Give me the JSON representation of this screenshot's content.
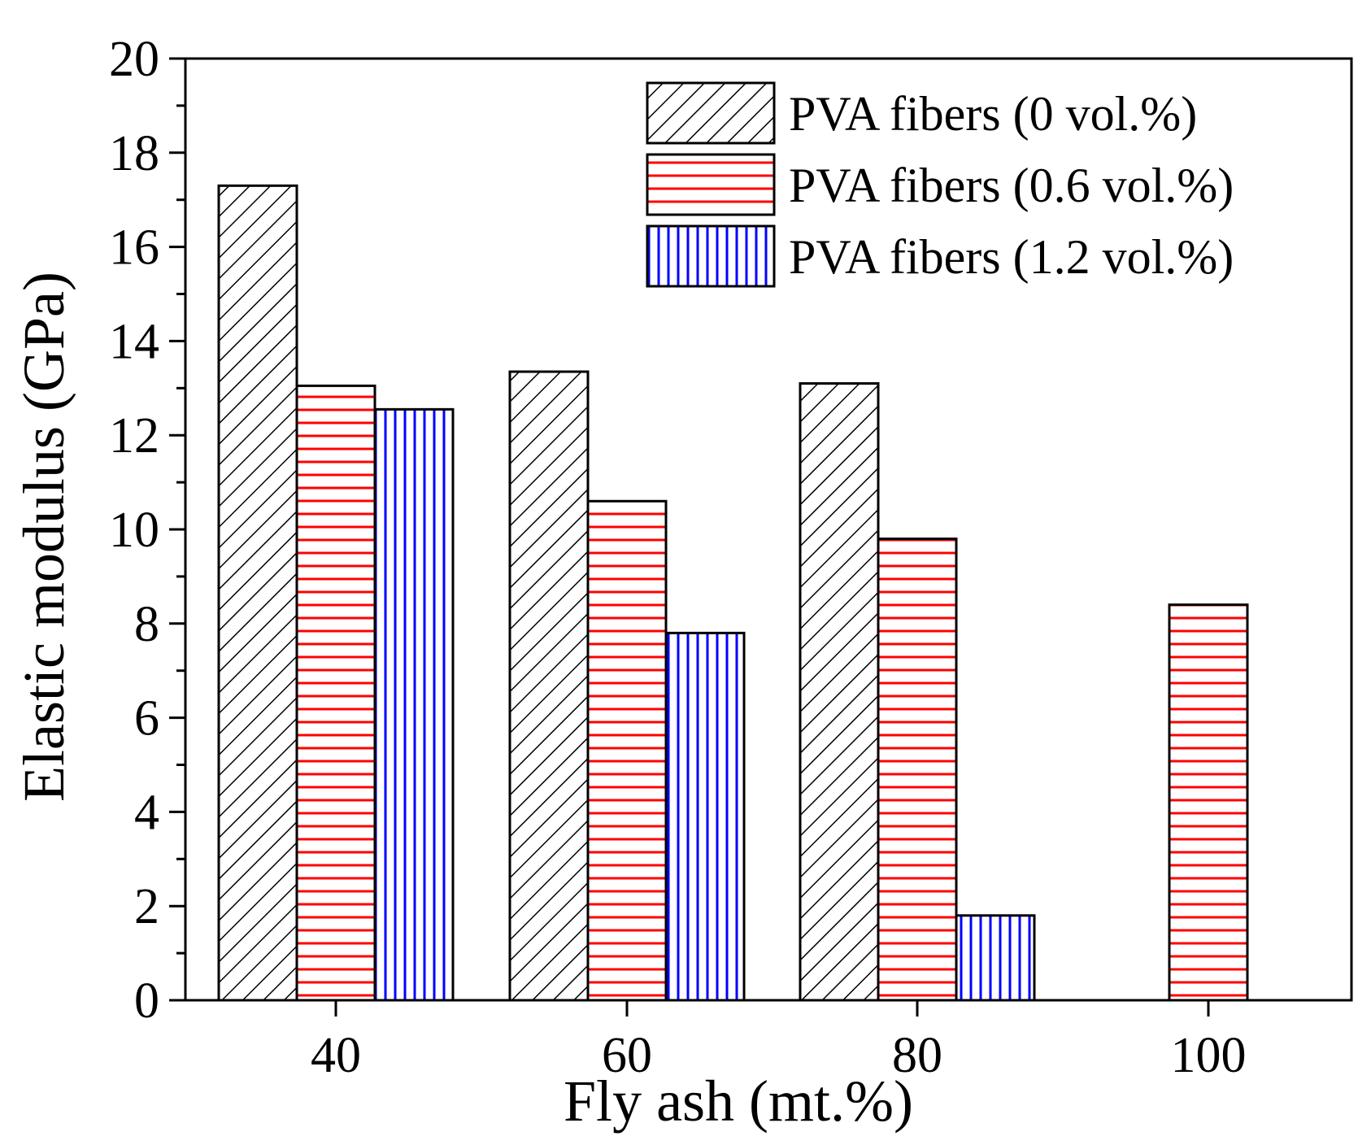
{
  "chart_data": {
    "type": "bar",
    "title": "",
    "xlabel": "Fly ash (mt.%)",
    "ylabel": "Elastic modulus (GPa)",
    "categories": [
      "40",
      "60",
      "80",
      "100"
    ],
    "ylim": [
      0,
      20
    ],
    "yticks": [
      0,
      2,
      4,
      6,
      8,
      10,
      12,
      14,
      16,
      18,
      20
    ],
    "yticks_labels": [
      "0",
      "2",
      "4",
      "6",
      "8",
      "10",
      "12",
      "14",
      "16",
      "18",
      "20"
    ],
    "grid": false,
    "legend_position": "top-right",
    "series": [
      {
        "name": "PVA fibers (0 vol.%)",
        "pattern": "diagonal",
        "color": "#000000",
        "values": [
          17.3,
          13.35,
          13.1,
          null
        ]
      },
      {
        "name": "PVA fibers (0.6 vol.%)",
        "pattern": "horizontal",
        "color": "#ff0000",
        "values": [
          13.05,
          10.6,
          9.8,
          8.4
        ]
      },
      {
        "name": "PVA fibers (1.2 vol.%)",
        "pattern": "vertical",
        "color": "#0000ff",
        "values": [
          12.55,
          7.8,
          1.8,
          null
        ]
      }
    ]
  }
}
